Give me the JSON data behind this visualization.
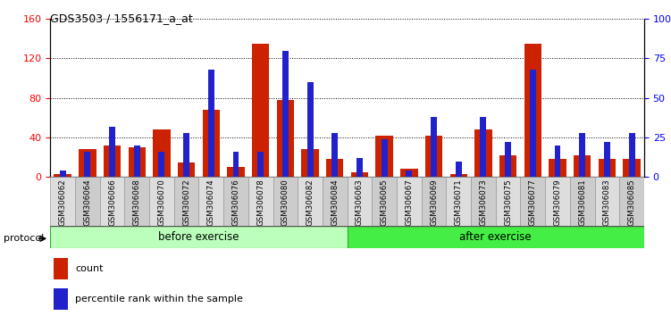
{
  "title": "GDS3503 / 1556171_a_at",
  "categories": [
    "GSM306062",
    "GSM306064",
    "GSM306066",
    "GSM306068",
    "GSM306070",
    "GSM306072",
    "GSM306074",
    "GSM306076",
    "GSM306078",
    "GSM306080",
    "GSM306082",
    "GSM306084",
    "GSM306063",
    "GSM306065",
    "GSM306067",
    "GSM306069",
    "GSM306071",
    "GSM306073",
    "GSM306075",
    "GSM306077",
    "GSM306079",
    "GSM306081",
    "GSM306083",
    "GSM306085"
  ],
  "count_values": [
    3,
    28,
    32,
    30,
    48,
    15,
    68,
    10,
    135,
    78,
    28,
    18,
    5,
    42,
    8,
    42,
    3,
    48,
    22,
    135,
    18,
    22,
    18,
    18
  ],
  "percentile_values": [
    4,
    16,
    32,
    20,
    16,
    28,
    68,
    16,
    16,
    80,
    60,
    28,
    12,
    24,
    4,
    38,
    10,
    38,
    22,
    68,
    20,
    28,
    22,
    28
  ],
  "before_exercise_count": 12,
  "after_exercise_count": 12,
  "left_ylim": [
    0,
    160
  ],
  "right_ylim": [
    0,
    100
  ],
  "left_yticks": [
    0,
    40,
    80,
    120,
    160
  ],
  "right_yticks": [
    0,
    25,
    50,
    75,
    100
  ],
  "right_yticklabels": [
    "0",
    "25",
    "50",
    "75",
    "100%"
  ],
  "bar_color_red": "#CC2200",
  "bar_color_blue": "#2222CC",
  "before_exercise_color": "#BBFFBB",
  "after_exercise_color": "#44EE44",
  "protocol_label": "protocol",
  "before_label": "before exercise",
  "after_label": "after exercise",
  "count_label": "count",
  "percentile_label": "percentile rank within the sample",
  "xtick_bg_color": "#CCCCCC",
  "xtick_bg_color2": "#DDDDDD"
}
